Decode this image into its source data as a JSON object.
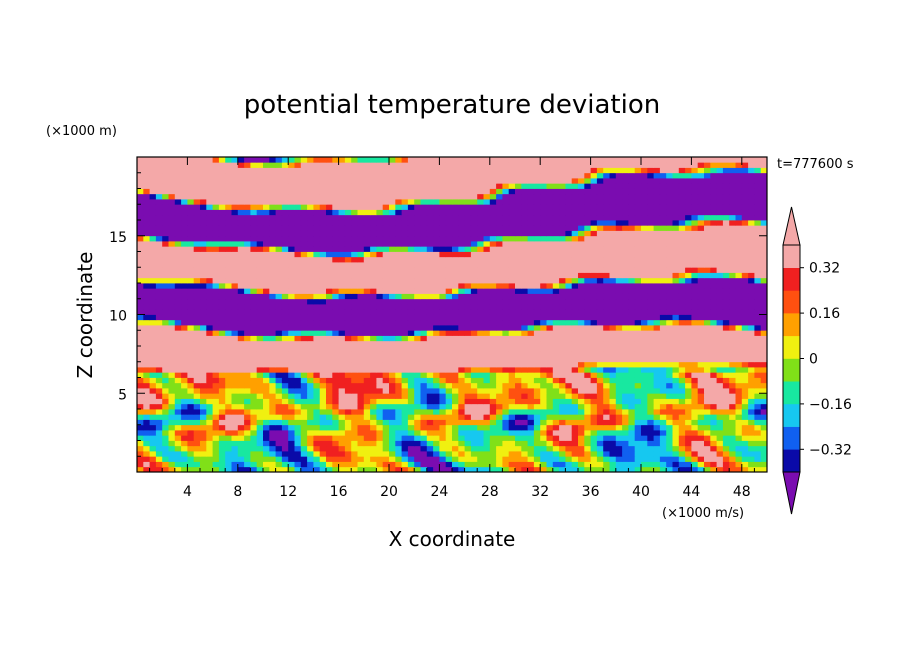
{
  "chart_data": {
    "type": "heatmap",
    "title": "potential temperature deviation",
    "xlabel": "X coordinate",
    "ylabel": "Z coordinate",
    "x_unit": "(×1000 m/s)",
    "y_unit": "(×1000 m)",
    "time_label": "t=777600 s",
    "xlim": [
      0,
      50
    ],
    "ylim": [
      0,
      20
    ],
    "x_ticks": [
      4,
      8,
      12,
      16,
      20,
      24,
      28,
      32,
      36,
      40,
      44,
      48
    ],
    "x_tick_labels": [
      "4",
      "8",
      "12",
      "16",
      "20",
      "24",
      "28",
      "32",
      "36",
      "40",
      "44",
      "48"
    ],
    "y_ticks": [
      5,
      10,
      15
    ],
    "y_tick_labels": [
      "5",
      "10",
      "15"
    ],
    "colorbar": {
      "levels": [
        -0.4,
        -0.32,
        -0.24,
        -0.16,
        -0.08,
        0,
        0.08,
        0.16,
        0.24,
        0.32,
        0.4
      ],
      "labeled_ticks": [
        0.32,
        0.16,
        0,
        -0.16,
        -0.32
      ],
      "labeled_tick_labels": [
        "0.32",
        "0.16",
        "0",
        "−0.16",
        "−0.32"
      ],
      "colors": [
        "#7a0cb0",
        "#0a0aa8",
        "#1060f0",
        "#16c8f0",
        "#18e8a0",
        "#80e018",
        "#f0f010",
        "#ffa000",
        "#ff5010",
        "#f02020",
        "#f4a8a8"
      ],
      "extend": "both"
    },
    "field_description_bands": [
      {
        "z_range": [
          0,
          7
        ],
        "pattern": "turbulent convective eddies, values roughly -0.4 to 0.4"
      },
      {
        "z_range": [
          7,
          20
        ],
        "pattern": "alternating layers of strongly negative (<-0.4) and strongly positive (>0.4) deviation"
      }
    ]
  }
}
